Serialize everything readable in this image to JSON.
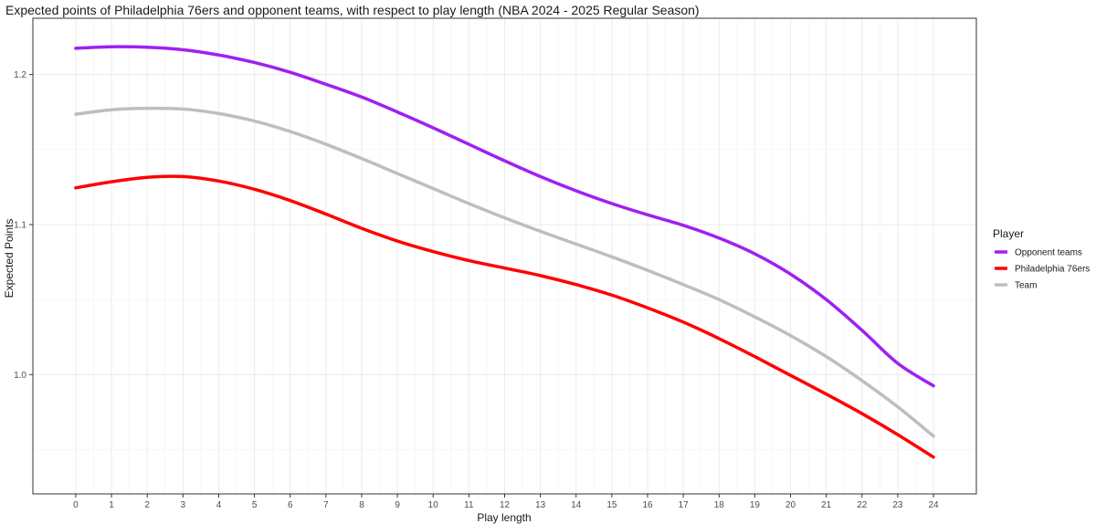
{
  "chart_data": {
    "type": "line",
    "title": "Expected points of Philadelphia 76ers and opponent teams, with respect to play length (NBA 2024 - 2025 Regular Season)",
    "xlabel": "Play length",
    "ylabel": "Expected Points",
    "xlim": [
      -1.2,
      25.2
    ],
    "ylim": [
      0.9205,
      1.2375
    ],
    "x_ticks": [
      0,
      1,
      2,
      3,
      4,
      5,
      6,
      7,
      8,
      9,
      10,
      11,
      12,
      13,
      14,
      15,
      16,
      17,
      18,
      19,
      20,
      21,
      22,
      23,
      24
    ],
    "y_ticks": [
      1.0,
      1.1,
      1.2
    ],
    "y_tick_labels": [
      "1.0",
      "1.1",
      "1.2"
    ],
    "grid": true,
    "legend": {
      "title": "Player",
      "placement": "right"
    },
    "x": [
      0,
      1,
      2,
      3,
      4,
      5,
      6,
      7,
      8,
      9,
      10,
      11,
      12,
      13,
      14,
      15,
      16,
      17,
      18,
      19,
      20,
      21,
      22,
      23,
      24
    ],
    "series": [
      {
        "name": "Opponent teams",
        "color": "#a020f0",
        "values": [
          1.2175,
          1.2185,
          1.2182,
          1.2165,
          1.213,
          1.208,
          1.2015,
          1.1935,
          1.185,
          1.175,
          1.1645,
          1.1535,
          1.1425,
          1.132,
          1.1225,
          1.114,
          1.1065,
          1.0995,
          1.091,
          1.0805,
          1.067,
          1.05,
          1.0295,
          1.0075,
          0.9925
        ]
      },
      {
        "name": "Philadelphia 76ers",
        "color": "#ff0000",
        "values": [
          1.1245,
          1.1285,
          1.1315,
          1.132,
          1.129,
          1.1235,
          1.116,
          1.107,
          1.0975,
          1.089,
          1.082,
          1.076,
          1.071,
          1.066,
          1.06,
          1.053,
          1.0445,
          1.035,
          1.024,
          1.012,
          0.9995,
          0.987,
          0.974,
          0.96,
          0.945
        ]
      },
      {
        "name": "Team",
        "color": "#bebebe",
        "values": [
          1.1735,
          1.1765,
          1.1775,
          1.177,
          1.174,
          1.169,
          1.162,
          1.1535,
          1.144,
          1.134,
          1.124,
          1.114,
          1.1045,
          1.0955,
          1.087,
          1.0785,
          1.0695,
          1.06,
          1.05,
          1.0385,
          1.026,
          1.012,
          0.996,
          0.9785,
          0.959
        ]
      }
    ]
  }
}
